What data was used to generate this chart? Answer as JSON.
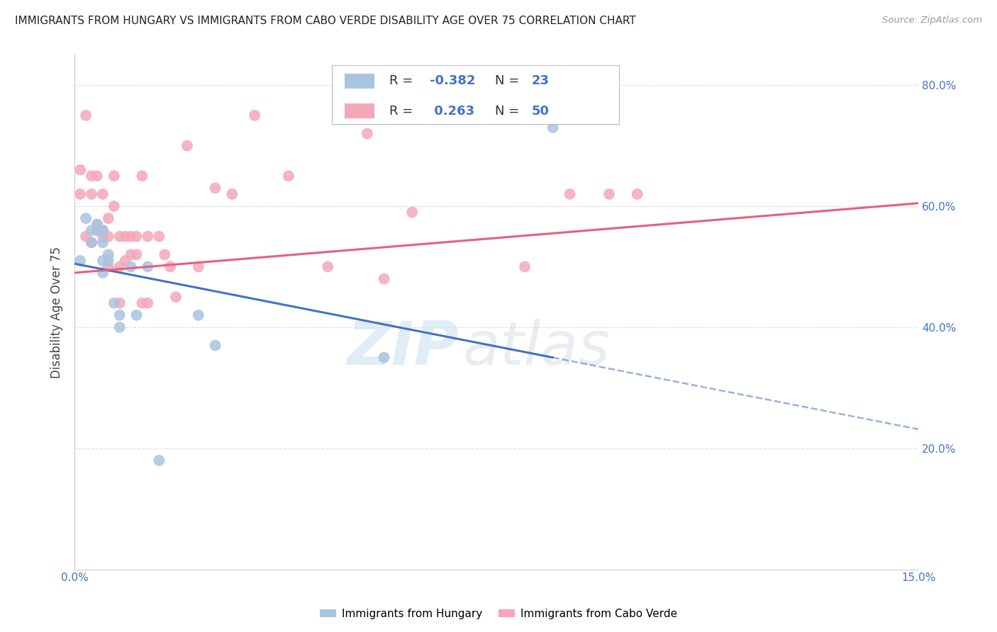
{
  "title": "IMMIGRANTS FROM HUNGARY VS IMMIGRANTS FROM CABO VERDE DISABILITY AGE OVER 75 CORRELATION CHART",
  "source": "Source: ZipAtlas.com",
  "ylabel": "Disability Age Over 75",
  "legend_label1": "Immigrants from Hungary",
  "legend_label2": "Immigrants from Cabo Verde",
  "R1": -0.382,
  "N1": 23,
  "R2": 0.263,
  "N2": 50,
  "color1": "#a8c4e0",
  "color2": "#f4a7b9",
  "line_color1": "#4472c4",
  "line_color2": "#e8607a",
  "xmin": 0.0,
  "xmax": 0.15,
  "ymin": 0.0,
  "ymax": 0.85,
  "yticks": [
    0.2,
    0.4,
    0.6,
    0.8
  ],
  "ytick_labels": [
    "20.0%",
    "40.0%",
    "60.0%",
    "80.0%"
  ],
  "xticks": [
    0.0,
    0.03,
    0.06,
    0.09,
    0.12,
    0.15
  ],
  "xtick_labels": [
    "0.0%",
    "",
    "",
    "",
    "",
    "15.0%"
  ],
  "hungary_x": [
    0.001,
    0.002,
    0.003,
    0.003,
    0.004,
    0.004,
    0.005,
    0.005,
    0.005,
    0.005,
    0.006,
    0.006,
    0.007,
    0.008,
    0.008,
    0.01,
    0.011,
    0.013,
    0.015,
    0.022,
    0.025,
    0.055,
    0.085
  ],
  "hungary_y": [
    0.51,
    0.58,
    0.56,
    0.54,
    0.57,
    0.56,
    0.56,
    0.54,
    0.51,
    0.49,
    0.52,
    0.51,
    0.44,
    0.42,
    0.4,
    0.5,
    0.42,
    0.5,
    0.18,
    0.42,
    0.37,
    0.35,
    0.73
  ],
  "caboverde_x": [
    0.001,
    0.001,
    0.002,
    0.002,
    0.003,
    0.003,
    0.003,
    0.004,
    0.004,
    0.004,
    0.005,
    0.005,
    0.005,
    0.005,
    0.006,
    0.006,
    0.006,
    0.007,
    0.007,
    0.008,
    0.008,
    0.008,
    0.009,
    0.009,
    0.01,
    0.01,
    0.011,
    0.011,
    0.012,
    0.012,
    0.013,
    0.013,
    0.015,
    0.016,
    0.017,
    0.018,
    0.02,
    0.022,
    0.025,
    0.028,
    0.032,
    0.038,
    0.045,
    0.052,
    0.055,
    0.06,
    0.08,
    0.088,
    0.095,
    0.1
  ],
  "caboverde_y": [
    0.66,
    0.62,
    0.55,
    0.75,
    0.54,
    0.62,
    0.65,
    0.57,
    0.56,
    0.65,
    0.56,
    0.62,
    0.56,
    0.55,
    0.58,
    0.55,
    0.5,
    0.6,
    0.65,
    0.55,
    0.5,
    0.44,
    0.55,
    0.51,
    0.55,
    0.52,
    0.55,
    0.52,
    0.44,
    0.65,
    0.55,
    0.44,
    0.55,
    0.52,
    0.5,
    0.45,
    0.7,
    0.5,
    0.63,
    0.62,
    0.75,
    0.65,
    0.5,
    0.72,
    0.48,
    0.59,
    0.5,
    0.62,
    0.62,
    0.62
  ],
  "watermark_zip": "ZIP",
  "watermark_atlas": "atlas",
  "background_color": "#ffffff",
  "grid_color": "#dddddd"
}
